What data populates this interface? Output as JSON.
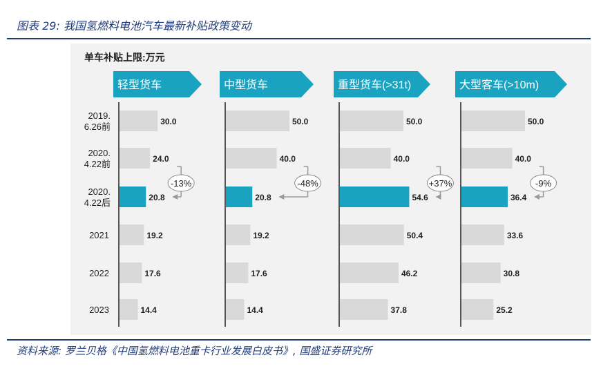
{
  "title": "图表 29:  我国氢燃料电池汽车最新补贴政策变动",
  "source": "资料来源:  罗兰贝格《中国氢燃料电池重卡行业发展白皮书》,  国盛证券研究所",
  "colors": {
    "accent": "#1aa3c1",
    "bar_gray": "#d9d9d9",
    "brand": "#1f3b7a"
  },
  "chart_data": {
    "type": "bar",
    "orientation": "horizontal",
    "unit_label": "单车补贴上限:万元",
    "categories": [
      "2019.\n6.26前",
      "2020.\n4.22前",
      "2020.\n4.22后",
      "2021",
      "2022",
      "2023"
    ],
    "highlight_index": 2,
    "series": [
      {
        "name": "轻型货车",
        "values": [
          30.0,
          24.0,
          20.8,
          19.2,
          17.6,
          14.4
        ],
        "change": "-13%"
      },
      {
        "name": "中型货车",
        "values": [
          50.0,
          40.0,
          20.8,
          19.2,
          17.6,
          14.4
        ],
        "change": "-48%"
      },
      {
        "name": "重型货车(>31t)",
        "values": [
          50.0,
          40.0,
          54.6,
          50.4,
          46.2,
          37.8
        ],
        "change": "+37%"
      },
      {
        "name": "大型客车(>10m)",
        "values": [
          50.0,
          40.0,
          36.4,
          33.6,
          30.8,
          25.2
        ],
        "change": "-9%"
      }
    ]
  }
}
